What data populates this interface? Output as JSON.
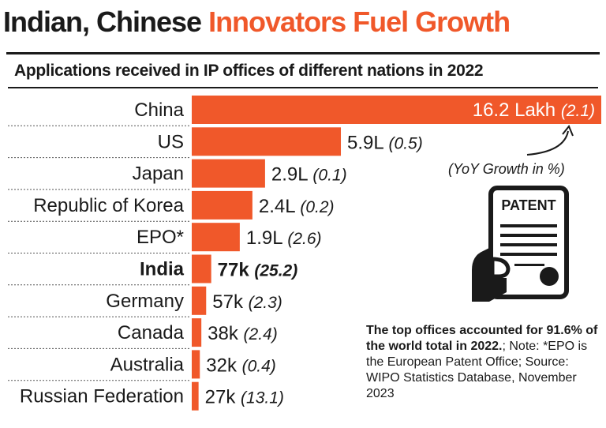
{
  "header": {
    "title_part1": "Indian, Chinese",
    "title_part2": "Innovators Fuel Growth",
    "subtitle": "Applications received in IP offices of different nations in 2022"
  },
  "colors": {
    "bar": "#f0582a",
    "accent_text": "#f0582a",
    "text": "#1a1a1a"
  },
  "annotation": {
    "yoy_label": "(YoY Growth in %)"
  },
  "icon": {
    "name": "patent-document-icon",
    "label": "PATENT"
  },
  "note": {
    "bold": "The top offices accounted for 91.6% of the world total in 2022.",
    "regular": "; Note: *EPO is the European Patent Office; Source: WIPO Statistics Database, November 2023"
  },
  "chart_data": {
    "type": "bar",
    "orientation": "horizontal",
    "categories": [
      "China",
      "US",
      "Japan",
      "Republic of Korea",
      "EPO*",
      "India",
      "Germany",
      "Canada",
      "Australia",
      "Russian Federation"
    ],
    "values": [
      1620000,
      590000,
      290000,
      240000,
      190000,
      77000,
      57000,
      38000,
      32000,
      27000
    ],
    "value_labels": [
      "16.2 Lakh",
      "5.9L",
      "2.9L",
      "2.4L",
      "1.9L",
      "77k",
      "57k",
      "38k",
      "32k",
      "27k"
    ],
    "yoy_growth": [
      "(2.1)",
      "(0.5)",
      "(0.1)",
      "(0.2)",
      "(2.6)",
      "(25.2)",
      "(2.3)",
      "(2.4)",
      "(0.4)",
      "(13.1)"
    ],
    "highlight_category": "India",
    "xlim": [
      0,
      1620000
    ],
    "grid": false,
    "legend": "none"
  }
}
